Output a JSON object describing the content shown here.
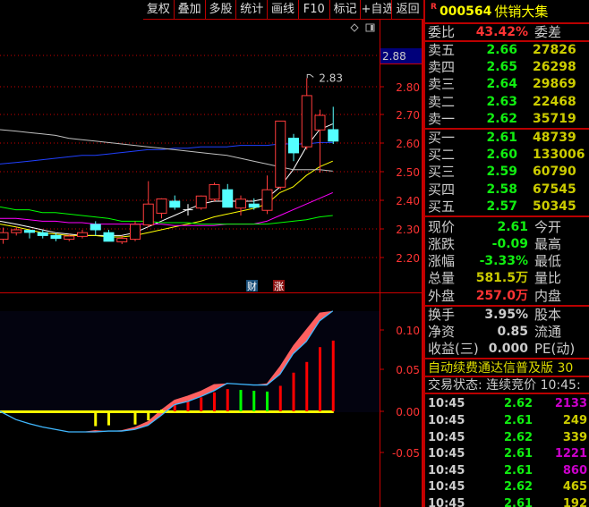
{
  "toolbar": [
    "复权",
    "叠加",
    "多股",
    "统计",
    "画线",
    "F10",
    "标记",
    "+自选",
    "返回"
  ],
  "stock": {
    "flag": "R",
    "code": "000564",
    "name": "供销大集"
  },
  "weibi": {
    "label": "委比",
    "value": "43.42%",
    "label2": "委差"
  },
  "sell": [
    {
      "label": "卖五",
      "price": "2.66",
      "vol": "27826"
    },
    {
      "label": "卖四",
      "price": "2.65",
      "vol": "26298"
    },
    {
      "label": "卖三",
      "price": "2.64",
      "vol": "29869"
    },
    {
      "label": "卖二",
      "price": "2.63",
      "vol": "22468"
    },
    {
      "label": "卖一",
      "price": "2.62",
      "vol": "35719"
    }
  ],
  "buy": [
    {
      "label": "买一",
      "price": "2.61",
      "vol": "48739"
    },
    {
      "label": "买二",
      "price": "2.60",
      "vol": "133006"
    },
    {
      "label": "买三",
      "price": "2.59",
      "vol": "60790"
    },
    {
      "label": "买四",
      "price": "2.58",
      "vol": "67545"
    },
    {
      "label": "买五",
      "price": "2.57",
      "vol": "50345"
    }
  ],
  "stats": [
    {
      "label": "现价",
      "value": "2.61",
      "color": "g",
      "label2": "今开"
    },
    {
      "label": "涨跌",
      "value": "-0.09",
      "color": "g",
      "label2": "最高"
    },
    {
      "label": "涨幅",
      "value": "-3.33%",
      "color": "g",
      "label2": "最低"
    },
    {
      "label": "总量",
      "value": "581.5万",
      "color": "y",
      "label2": "量比"
    },
    {
      "label": "外盘",
      "value": "257.0万",
      "color": "r",
      "label2": "内盘"
    }
  ],
  "stats2": [
    {
      "label": "换手",
      "value": "3.95%",
      "label2": "股本"
    },
    {
      "label": "净资",
      "value": "0.85",
      "label2": "流通"
    },
    {
      "label": "收益(三)",
      "value": "0.000",
      "label2": "PE(动)"
    }
  ],
  "ad": "自动续费通达信普及版  30",
  "status": "交易状态: 连续竞价 10:45:",
  "ticks": [
    {
      "time": "10:45",
      "price": "2.62",
      "vol": "2133",
      "vc": "m"
    },
    {
      "time": "10:45",
      "price": "2.61",
      "vol": "249",
      "vc": "y"
    },
    {
      "time": "10:45",
      "price": "2.62",
      "vol": "339",
      "vc": "y"
    },
    {
      "time": "10:45",
      "price": "2.61",
      "vol": "1221",
      "vc": "m"
    },
    {
      "time": "10:45",
      "price": "2.61",
      "vol": "860",
      "vc": "m"
    },
    {
      "time": "10:45",
      "price": "2.62",
      "vol": "465",
      "vc": "y"
    },
    {
      "time": "10:45",
      "price": "2.61",
      "vol": "192",
      "vc": "y"
    }
  ],
  "chart": {
    "current_price_label": "2.88",
    "high_marker": "2.83",
    "price_ticks": [
      "2.80",
      "2.70",
      "2.60",
      "2.50",
      "2.40",
      "2.30",
      "2.20"
    ],
    "badges": [
      "财",
      "涨"
    ],
    "candles": [
      [
        2.267,
        2.308,
        2.251,
        2.29
      ],
      [
        2.29,
        2.31,
        2.28,
        2.3
      ],
      [
        2.298,
        2.3,
        2.27,
        2.291
      ],
      [
        2.29,
        2.3,
        2.27,
        2.28
      ],
      [
        2.28,
        2.29,
        2.26,
        2.27
      ],
      [
        2.267,
        2.285,
        2.26,
        2.278
      ],
      [
        2.277,
        2.3,
        2.27,
        2.29
      ],
      [
        2.319,
        2.33,
        2.28,
        2.3
      ],
      [
        2.29,
        2.3,
        2.26,
        2.26
      ],
      [
        2.258,
        2.28,
        2.25,
        2.27
      ],
      [
        2.267,
        2.33,
        2.26,
        2.319
      ],
      [
        2.317,
        2.47,
        2.31,
        2.39
      ],
      [
        2.358,
        2.41,
        2.34,
        2.408
      ],
      [
        2.4,
        2.42,
        2.37,
        2.379
      ],
      [
        2.37,
        2.39,
        2.35,
        2.37
      ],
      [
        2.376,
        2.42,
        2.37,
        2.418
      ],
      [
        2.407,
        2.465,
        2.4,
        2.458
      ],
      [
        2.44,
        2.46,
        2.38,
        2.379
      ],
      [
        2.376,
        2.42,
        2.35,
        2.407
      ],
      [
        2.39,
        2.41,
        2.37,
        2.379
      ],
      [
        2.368,
        2.49,
        2.355,
        2.44
      ],
      [
        2.449,
        2.68,
        2.44,
        2.68
      ],
      [
        2.62,
        2.635,
        2.54,
        2.569
      ],
      [
        2.59,
        2.83,
        2.58,
        2.769
      ],
      [
        2.649,
        2.72,
        2.5,
        2.7
      ],
      [
        2.65,
        2.73,
        2.6,
        2.61
      ]
    ],
    "ma": [
      {
        "color": "#ffffff",
        "values": [
          2.33,
          2.32,
          2.31,
          2.3,
          2.29,
          2.285,
          2.28,
          2.28,
          2.28,
          2.28,
          2.29,
          2.31,
          2.33,
          2.35,
          2.37,
          2.39,
          2.4,
          2.4,
          2.4,
          2.4,
          2.41,
          2.45,
          2.51,
          2.59,
          2.65,
          2.67
        ]
      },
      {
        "color": "#ffff00",
        "values": [
          2.32,
          2.31,
          2.3,
          2.29,
          2.285,
          2.28,
          2.28,
          2.28,
          2.275,
          2.275,
          2.28,
          2.29,
          2.3,
          2.31,
          2.32,
          2.33,
          2.345,
          2.355,
          2.365,
          2.375,
          2.39,
          2.43,
          2.45,
          2.49,
          2.52,
          2.54
        ]
      },
      {
        "color": "#ff00ff",
        "values": [
          2.34,
          2.34,
          2.335,
          2.33,
          2.33,
          2.325,
          2.325,
          2.32,
          2.32,
          2.32,
          2.32,
          2.32,
          2.32,
          2.315,
          2.315,
          2.315,
          2.315,
          2.32,
          2.32,
          2.32,
          2.33,
          2.35,
          2.37,
          2.39,
          2.41,
          2.43
        ]
      },
      {
        "color": "#00ff00",
        "values": [
          2.38,
          2.37,
          2.37,
          2.36,
          2.36,
          2.355,
          2.35,
          2.345,
          2.34,
          2.33,
          2.33,
          2.33,
          2.325,
          2.325,
          2.325,
          2.32,
          2.32,
          2.32,
          2.32,
          2.32,
          2.32,
          2.325,
          2.33,
          2.335,
          2.345,
          2.35
        ]
      },
      {
        "color": "#2040ff",
        "values": [
          2.53,
          2.535,
          2.54,
          2.545,
          2.55,
          2.555,
          2.56,
          2.56,
          2.565,
          2.57,
          2.575,
          2.58,
          2.58,
          2.585,
          2.585,
          2.59,
          2.59,
          2.59,
          2.595,
          2.595,
          2.595,
          2.6,
          2.6,
          2.6,
          2.605,
          2.605
        ]
      },
      {
        "color": "#c0c0c0",
        "values": [
          2.65,
          2.645,
          2.64,
          2.635,
          2.63,
          2.62,
          2.615,
          2.61,
          2.605,
          2.6,
          2.595,
          2.59,
          2.585,
          2.58,
          2.575,
          2.57,
          2.565,
          2.56,
          2.55,
          2.54,
          2.53,
          2.52,
          2.51,
          2.51,
          2.51,
          2.505
        ]
      }
    ]
  },
  "indicator": {
    "ticks": [
      "0.10",
      "0.05",
      "0.00",
      "-0.05"
    ],
    "line": [
      0.0,
      -0.01,
      -0.015,
      -0.019,
      -0.022,
      -0.025,
      -0.025,
      -0.025,
      -0.024,
      -0.024,
      -0.022,
      -0.017,
      -0.005,
      0.008,
      0.012,
      0.018,
      0.025,
      0.034,
      0.033,
      0.032,
      0.032,
      0.045,
      0.07,
      0.085,
      0.11,
      0.122
    ],
    "signal": [
      0.0,
      -0.01,
      -0.015,
      -0.019,
      -0.022,
      -0.025,
      -0.025,
      -0.023,
      -0.024,
      -0.023,
      -0.019,
      -0.012,
      0.002,
      0.014,
      0.019,
      0.025,
      0.033,
      0.034,
      0.033,
      0.032,
      0.034,
      0.055,
      0.08,
      0.1,
      0.12,
      0.122
    ],
    "bars": [
      null,
      null,
      null,
      null,
      null,
      null,
      null,
      -0.018,
      -0.017,
      null,
      -0.016,
      -0.011,
      0.002,
      0.009,
      0.013,
      0.017,
      0.023,
      0.027,
      0.026,
      0.025,
      0.024,
      0.031,
      0.047,
      0.06,
      0.078,
      0.086
    ],
    "bar_colors": [
      null,
      null,
      null,
      null,
      null,
      null,
      null,
      "#ffff00",
      "#ffff00",
      null,
      "#ffff00",
      "#ffff00",
      "#ffff00",
      "#ff0000",
      "#ff0000",
      "#ff0000",
      "#ff0000",
      "#ff0000",
      "#00ff00",
      "#00ff00",
      "#00ff00",
      "#ff0000",
      "#ff0000",
      "#ff0000",
      "#ff0000",
      "#ff0000"
    ]
  }
}
